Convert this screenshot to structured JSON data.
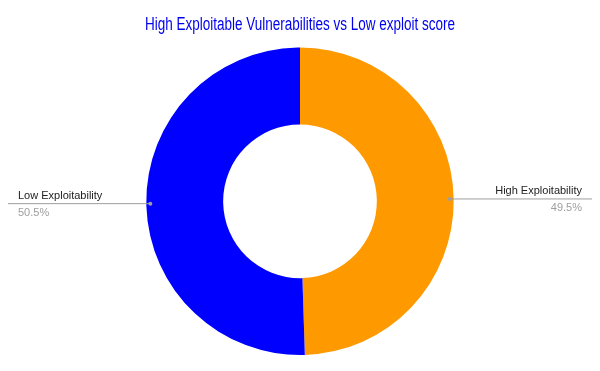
{
  "chart_data": {
    "type": "doughnut",
    "title": "High Exploitable Vulnerabilities vs Low exploit score",
    "categories": [
      "High Exploitability",
      "Low Exploitability"
    ],
    "values": [
      49.5,
      50.5
    ],
    "value_labels": [
      "49.5%",
      "50.5%"
    ],
    "colors": [
      "#ff9900",
      "#0000ff"
    ],
    "data_labels": true
  }
}
